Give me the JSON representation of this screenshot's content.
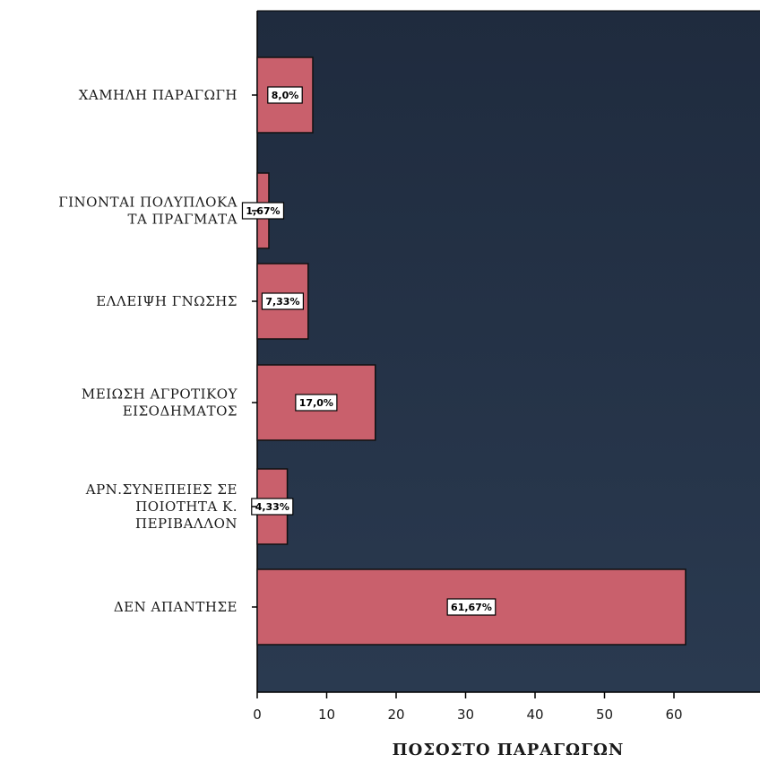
{
  "chart_data": {
    "type": "bar",
    "orientation": "horizontal",
    "categories": [
      [
        "ΧΑΜΗΛΗ ΠΑΡΑΓΩΓΗ"
      ],
      [
        "ΓΙΝΟΝΤΑΙ ΠΟΛΥΠΛΟΚΑ",
        "ΤΑ ΠΡΑΓΜΑΤΑ"
      ],
      [
        "ΕΛΛΕΙΨΗ ΓΝΩΣΗΣ"
      ],
      [
        "ΜΕΙΩΣΗ ΑΓΡΟΤΙΚΟΥ",
        "ΕΙΣΟΔΗΜΑΤΟΣ"
      ],
      [
        "ΑΡΝ.ΣΥΝΕΠΕΙΕΣ ΣΕ",
        "ΠΟΙΟΤΗΤΑ Κ.",
        "ΠΕΡΙΒΑΛΛΟΝ"
      ],
      [
        "ΔΕΝ ΑΠΑΝΤΗΣΕ"
      ]
    ],
    "values": [
      8.0,
      1.67,
      7.33,
      17.0,
      4.33,
      61.67
    ],
    "data_labels": [
      "8,0%",
      "1,67%",
      "7,33%",
      "17,0%",
      "4,33%",
      "61,67%"
    ],
    "xlabel": "ΠΟΣΟΣΤΟ ΠΑΡΑΓΩΓΩΝ",
    "xlim": [
      0,
      70
    ],
    "xticks": [
      0,
      10,
      20,
      30,
      40,
      50,
      60
    ],
    "grid": false,
    "colors": {
      "plot_background": "#243246",
      "bar_fill": "#c9606c",
      "bar_border": "#111111",
      "label_box": "#ffffff"
    }
  }
}
